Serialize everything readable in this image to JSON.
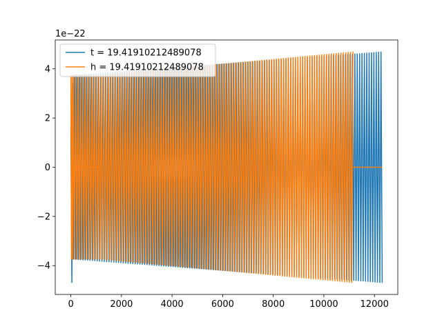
{
  "chart_data": {
    "type": "line",
    "title": "",
    "xlabel": "",
    "ylabel": "",
    "y_offset_label": "1e−22",
    "xlim": [
      -617,
      12922
    ],
    "ylim": [
      -5.17,
      5.17
    ],
    "xticks": [
      0,
      2000,
      4000,
      6000,
      8000,
      10000,
      12000
    ],
    "xtick_labels": [
      "0",
      "2000",
      "4000",
      "6000",
      "8000",
      "10000",
      "12000"
    ],
    "yticks": [
      -4,
      -2,
      0,
      2,
      4
    ],
    "ytick_labels": [
      "−4",
      "−2",
      "0",
      "2",
      "4"
    ],
    "grid": false,
    "legend_placement": "top-left",
    "series": [
      {
        "name": "t = 19.41910212489078",
        "color": "#1f77b4",
        "x_range": [
          0,
          12305
        ],
        "amplitude_start": 3.75,
        "amplitude_end": 4.7,
        "cycles": 130,
        "notes_points": [
          {
            "x": 0,
            "y": 1.6
          },
          {
            "x": 40,
            "y": -4.7
          },
          {
            "x": 80,
            "y": 3.4
          }
        ]
      },
      {
        "name": "h = 19.41910212489078",
        "color": "#ff7f0e",
        "x_range": [
          0,
          12305
        ],
        "segments": [
          {
            "x_range": [
              0,
              100
            ],
            "amplitude": 3.75
          },
          {
            "x_range": [
              100,
              1200
            ],
            "flat": 0
          },
          {
            "x_range": [
              100,
              1200
            ],
            "amplitude": 3.75
          },
          {
            "x_range": [
              1200,
              11150
            ],
            "amplitude_start": 3.75,
            "amplitude_end": 4.7
          },
          {
            "x_range": [
              11150,
              12305
            ],
            "flat": 0
          }
        ],
        "cycles": 118
      }
    ]
  }
}
